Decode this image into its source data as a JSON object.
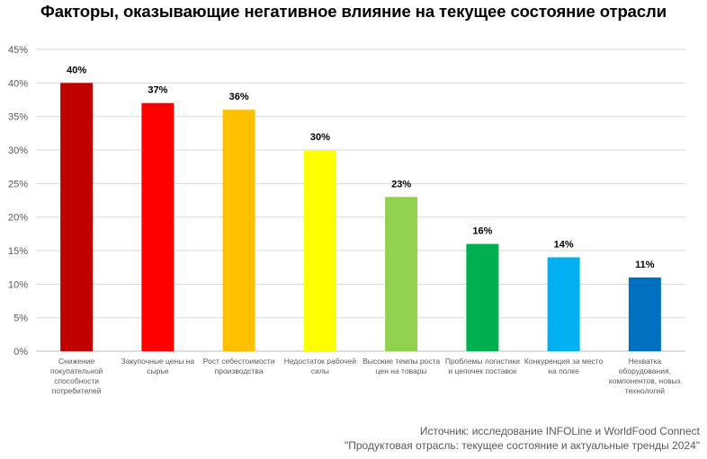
{
  "chart_data": {
    "type": "bar",
    "title": "Факторы, оказывающие негативное влияние на текущее состояние отрасли",
    "categories": [
      "Снижение покупательной способности потребителей",
      "Закупочные цены на сырье",
      "Рост себестоимости производства",
      "Недостаток рабочей силы",
      "Высокие темпы роста цен на товары",
      "Проблемы логистики и цепочек поставок",
      "Конкуренция за место на полке",
      "Нехватка оборудования, компонентов, новых технологий"
    ],
    "values": [
      40,
      37,
      36,
      30,
      23,
      16,
      14,
      11
    ],
    "value_labels": [
      "40%",
      "37%",
      "36%",
      "30%",
      "23%",
      "16%",
      "14%",
      "11%"
    ],
    "colors": [
      "#C00000",
      "#FF0000",
      "#FFC000",
      "#FFFF00",
      "#92D050",
      "#00B050",
      "#00B0F0",
      "#0070C0"
    ],
    "yticks": [
      0,
      5,
      10,
      15,
      20,
      25,
      30,
      35,
      40,
      45
    ],
    "ytick_labels": [
      "0%",
      "5%",
      "10%",
      "15%",
      "20%",
      "25%",
      "30%",
      "35%",
      "40%",
      "45%"
    ],
    "ylim": [
      0,
      45
    ],
    "grid": true,
    "xlabel": "",
    "ylabel": ""
  },
  "source": {
    "line1": "Источник: исследование INFOLine и WorldFood Connect",
    "line2": "\"Продуктовая отрасль: текущее состояние и актуальные тренды 2024\""
  }
}
